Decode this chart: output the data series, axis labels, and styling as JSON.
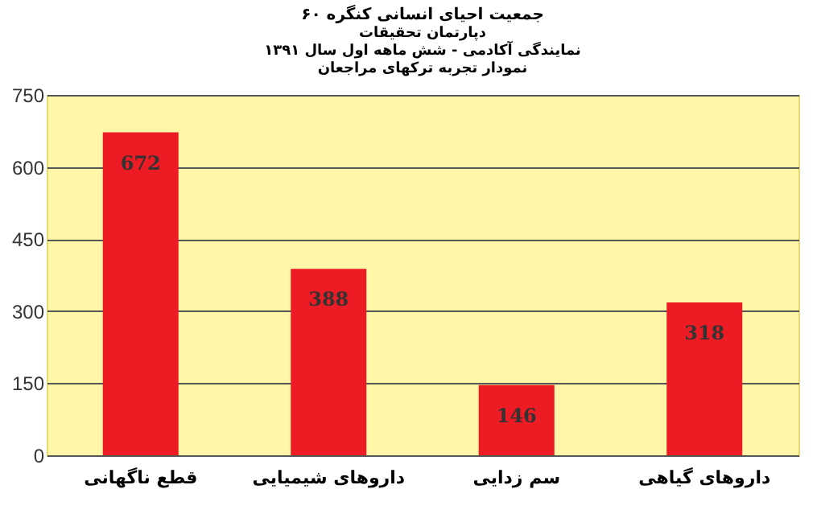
{
  "chart_data": {
    "type": "bar",
    "title": "جمعیت احیای انسانی کنگره ۶۰",
    "subtitle": "دپارتمان تحقیقات\nنمایندگی آکادمی - شش ماهه اول سال ۱۳۹۱\nنمودار تجربه ترکهای مراجعان",
    "categories": [
      "قطع ناگهانی",
      "داروهای شیمیایی",
      "سم زدایی",
      "داروهای گیاهی"
    ],
    "values": [
      672,
      388,
      146,
      318
    ],
    "color": "#ed1c24",
    "data_labels": true,
    "ylim": [
      0,
      750
    ],
    "yticks": [
      0,
      150,
      300,
      450,
      600,
      750
    ],
    "grid": "y"
  }
}
